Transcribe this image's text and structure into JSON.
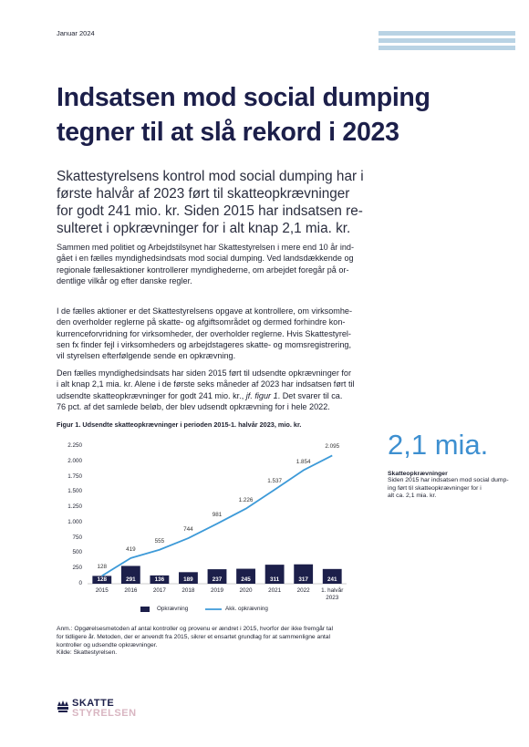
{
  "header": {
    "date": "Januar 2024"
  },
  "title": [
    "Indsatsen mod social dumping",
    "tegner til at slå rekord i 2023"
  ],
  "lead": [
    "Skattestyrelsens kontrol mod social dumping har i",
    "første halvår af 2023 ført til skatteopkrævninger",
    "for godt 241 mio. kr. Siden 2015 har indsatsen re-",
    "sulteret i opkrævninger for i alt knap 2,1 mia. kr."
  ],
  "paragraphs": [
    [
      "Sammen med politiet og Arbejdstilsynet har Skattestyrelsen i mere end 10 år ind-",
      "gået i en fælles myndighedsindsats mod social dumping. Ved landsdækkende og",
      "regionale fællesaktioner kontrollerer myndighederne, om arbejdet foregår på or-",
      "dentlige vilkår og efter danske regler."
    ],
    [
      "I de fælles aktioner er det Skattestyrelsens opgave at kontrollere, om virksomhe-",
      "den overholder reglerne på skatte- og afgiftsområdet og dermed forhindre kon-",
      "kurrenceforvridning for virksomheder, der overholder reglerne. Hvis Skattestyrel-",
      "sen fx finder fejl i virksomheders og arbejdstageres skatte- og momsregistrering,",
      "vil styrelsen efterfølgende sende en opkrævning."
    ],
    [
      "Den fælles myndighedsindsats har siden 2015 ført til udsendte opkrævninger for",
      "i alt knap 2,1 mia. kr. Alene i de første seks måneder af 2023 har indsatsen ført til",
      {
        "before": "udsendte skatteopkrævninger for godt 241 mio. kr., ",
        "italic": "jf. figur 1",
        "after": ". Det svarer til ca."
      },
      "76 pct. af det samlede beløb, der blev udsendt opkrævning for i hele 2022."
    ]
  ],
  "figure": {
    "title": "Figur 1. Udsendte skatteopkrævninger i perioden 2015-1. halvår 2023, mio. kr."
  },
  "chart_data": {
    "type": "bar",
    "categories": [
      "2015",
      "2016",
      "2017",
      "2018",
      "2019",
      "2020",
      "2021",
      "2022",
      "1. halvår 2023"
    ],
    "ylim": [
      0,
      2250
    ],
    "yticks": [
      0,
      250,
      500,
      750,
      {
        "value": 1000,
        "label": "1.000"
      },
      {
        "value": 1250,
        "label": "1.250"
      },
      {
        "value": 1500,
        "label": "1.500"
      },
      {
        "value": 1750,
        "label": "1.750"
      },
      {
        "value": 2000,
        "label": "2.000"
      },
      {
        "value": 2250,
        "label": "2.250"
      }
    ],
    "series": [
      {
        "name": "Opkrævning",
        "type": "bar",
        "color": "#1c1f4a",
        "values": [
          128,
          291,
          136,
          189,
          237,
          245,
          311,
          317,
          241
        ]
      },
      {
        "name": "Akk. opkrævning",
        "type": "line",
        "color": "#3d9ad8",
        "values": [
          128,
          419,
          555,
          744,
          981,
          1226,
          1537,
          1854,
          2095
        ],
        "value_labels": [
          "128",
          "419",
          "555",
          "744",
          "981",
          "1.226",
          "1.537",
          "1.854",
          "2.095"
        ]
      }
    ]
  },
  "sidebar": {
    "highlight": "2,1 mia.",
    "heading": "Skatteopkrævninger",
    "text": [
      "Siden 2015 har indsatsen mod social dump-",
      "ing ført til skatteopkrævninger for i",
      "alt ca. 2,1 mia. kr."
    ]
  },
  "notes": {
    "lines": [
      "Anm.: Opgørelsesmetoden af antal kontroller og provenu er ændret i 2015, hvorfor der ikke fremgår tal",
      "for tidligere år. Metoden, der er anvendt fra 2015, sikrer et ensartet grundlag for at sammenligne antal",
      "kontroller og udsendte opkrævninger."
    ],
    "source": "Kilde: Skattestyrelsen."
  },
  "logo": {
    "line1": "SKATTE",
    "line2": "STYRELSEN"
  }
}
